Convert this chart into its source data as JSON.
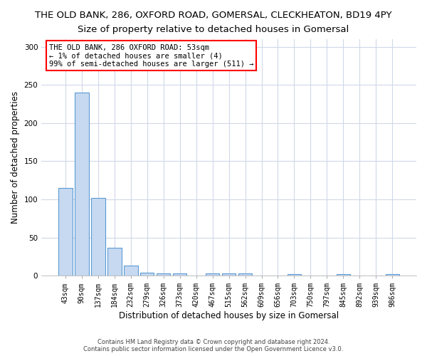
{
  "title": "THE OLD BANK, 286, OXFORD ROAD, GOMERSAL, CLECKHEATON, BD19 4PY",
  "subtitle": "Size of property relative to detached houses in Gomersal",
  "xlabel": "Distribution of detached houses by size in Gomersal",
  "ylabel": "Number of detached properties",
  "categories": [
    "43sqm",
    "90sqm",
    "137sqm",
    "184sqm",
    "232sqm",
    "279sqm",
    "326sqm",
    "373sqm",
    "420sqm",
    "467sqm",
    "515sqm",
    "562sqm",
    "609sqm",
    "656sqm",
    "703sqm",
    "750sqm",
    "797sqm",
    "845sqm",
    "892sqm",
    "939sqm",
    "986sqm"
  ],
  "values": [
    115,
    240,
    102,
    37,
    13,
    4,
    3,
    3,
    0,
    3,
    3,
    3,
    0,
    0,
    2,
    0,
    0,
    2,
    0,
    0,
    2
  ],
  "bar_color": "#c6d9f0",
  "bar_edge_color": "#5b9bd5",
  "annotation_line1": "THE OLD BANK, 286 OXFORD ROAD: 53sqm",
  "annotation_line2": "← 1% of detached houses are smaller (4)",
  "annotation_line3": "99% of semi-detached houses are larger (511) →",
  "ylim": [
    0,
    310
  ],
  "yticks": [
    0,
    50,
    100,
    150,
    200,
    250,
    300
  ],
  "footer_line1": "Contains HM Land Registry data © Crown copyright and database right 2024.",
  "footer_line2": "Contains public sector information licensed under the Open Government Licence v3.0.",
  "background_color": "#ffffff",
  "plot_background_color": "#ffffff",
  "grid_color": "#d0d8e8",
  "title_fontsize": 9.5,
  "tick_fontsize": 7,
  "ylabel_fontsize": 8.5,
  "xlabel_fontsize": 8.5,
  "annotation_fontsize": 7.5
}
